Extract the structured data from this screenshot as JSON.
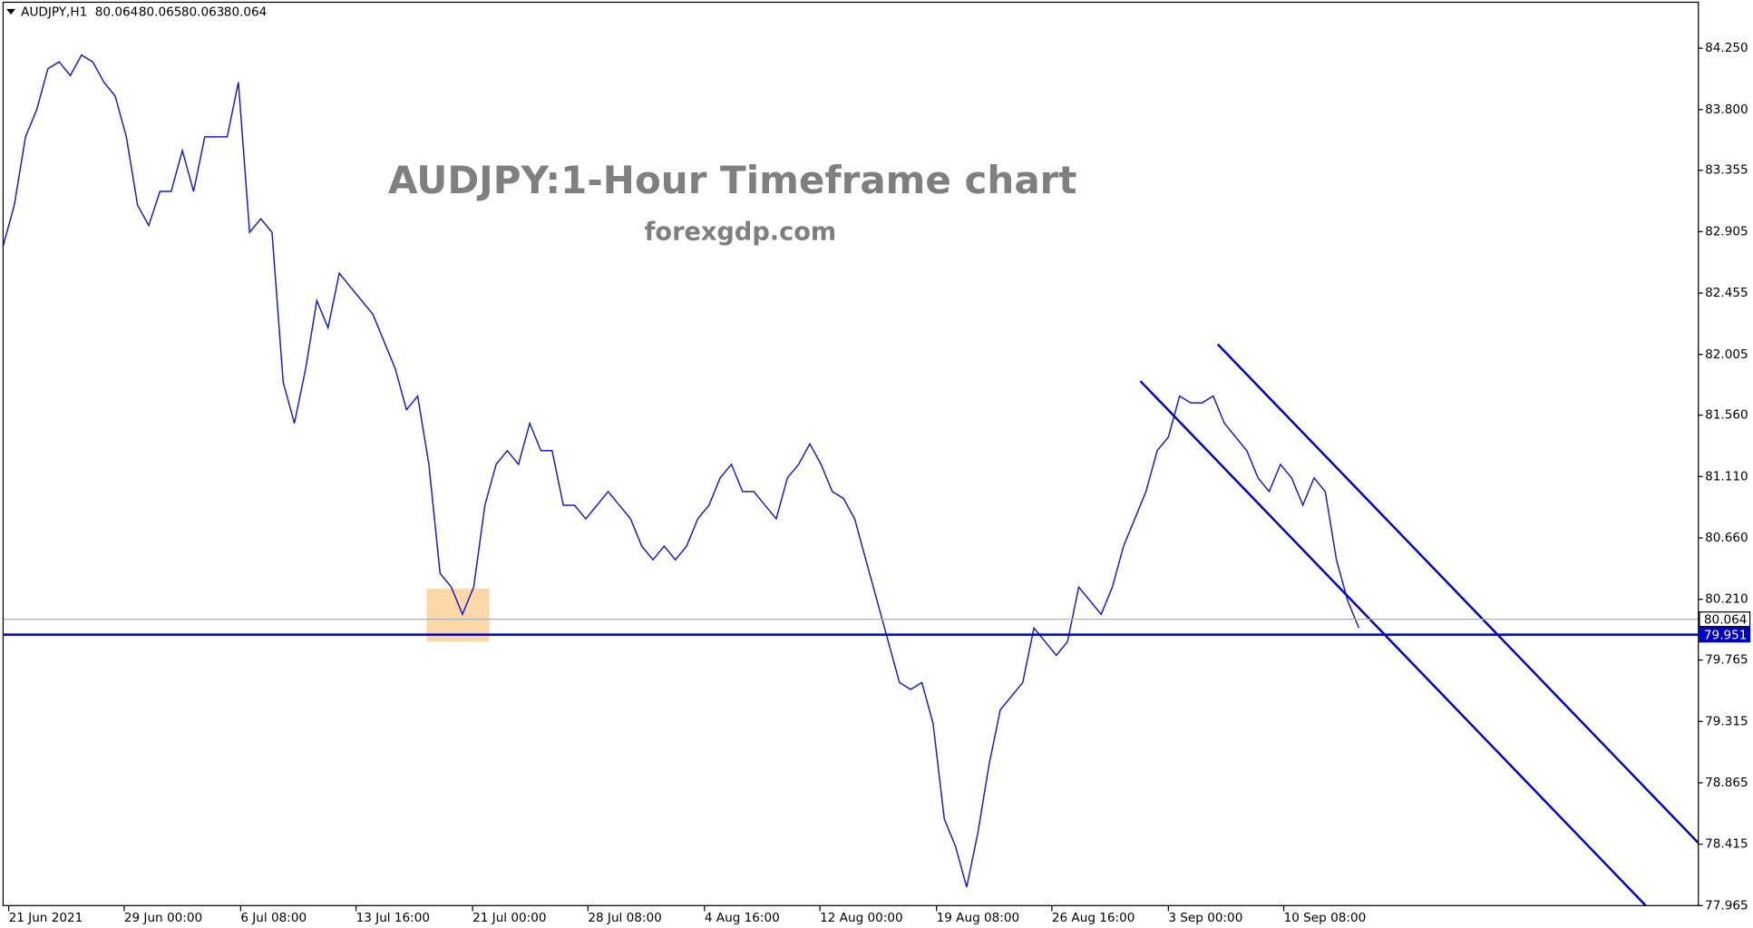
{
  "chart_data": {
    "type": "line",
    "symbol": "AUDJPY,H1",
    "ohlc": [
      80.064,
      80.065,
      80.063,
      80.064
    ],
    "title": "AUDJPY:1-Hour Timeframe chart",
    "subtitle": "forexgdp.com",
    "x": [
      0,
      10,
      20,
      30,
      40,
      50,
      60,
      70,
      80,
      90,
      100,
      110,
      120,
      130,
      140,
      150,
      160,
      170,
      180,
      190,
      200,
      210,
      220,
      230,
      240,
      250,
      260,
      270,
      280,
      290,
      300,
      310,
      320,
      330,
      340,
      350,
      360,
      370,
      380,
      390,
      400,
      410,
      420,
      430,
      440,
      450,
      460,
      470,
      480,
      490,
      500,
      510,
      520,
      530,
      540,
      550,
      560,
      570,
      580,
      590,
      600,
      610,
      620,
      630,
      640,
      650,
      660,
      670,
      680,
      690,
      700,
      710,
      720,
      730,
      740,
      750,
      760,
      770,
      780,
      790,
      800,
      810,
      820,
      830,
      840,
      850,
      860,
      870,
      880,
      890,
      900,
      910,
      920,
      930,
      940,
      950,
      960,
      970,
      980,
      990,
      1000,
      1010,
      1020,
      1030,
      1040,
      1050,
      1060,
      1070,
      1080,
      1090,
      1100,
      1110,
      1120,
      1130,
      1140,
      1150,
      1160,
      1170,
      1180,
      1190,
      1200,
      1210
    ],
    "series": [
      {
        "name": "AUDJPY",
        "color": "#1a1acc",
        "values": [
          82.8,
          83.1,
          83.6,
          83.8,
          84.1,
          84.15,
          84.05,
          84.2,
          84.15,
          84.0,
          83.9,
          83.6,
          83.1,
          82.95,
          83.2,
          83.2,
          83.5,
          83.2,
          83.6,
          83.6,
          83.6,
          84.0,
          82.9,
          83.0,
          82.9,
          81.8,
          81.5,
          81.9,
          82.4,
          82.2,
          82.6,
          82.5,
          82.4,
          82.3,
          82.1,
          81.9,
          81.6,
          81.7,
          81.2,
          80.4,
          80.3,
          80.1,
          80.3,
          80.9,
          81.2,
          81.3,
          81.2,
          81.5,
          81.3,
          81.3,
          80.9,
          80.9,
          80.8,
          80.9,
          81.0,
          80.9,
          80.8,
          80.6,
          80.5,
          80.6,
          80.5,
          80.6,
          80.8,
          80.9,
          81.1,
          81.2,
          81.0,
          81.0,
          80.9,
          80.8,
          81.1,
          81.2,
          81.35,
          81.2,
          81.0,
          80.95,
          80.8,
          80.5,
          80.2,
          79.9,
          79.6,
          79.55,
          79.6,
          79.3,
          78.6,
          78.4,
          78.1,
          78.5,
          79.0,
          79.4,
          79.5,
          79.6,
          80.0,
          79.9,
          79.8,
          79.9,
          80.3,
          80.2,
          80.1,
          80.3,
          80.6,
          80.8,
          81.0,
          81.3,
          81.4,
          81.7,
          81.65,
          81.65,
          81.7,
          81.5,
          81.4,
          81.3,
          81.1,
          81.0,
          81.2,
          81.1,
          80.9,
          81.1,
          81.0,
          80.5,
          80.2,
          80.0
        ]
      }
    ],
    "xlim": [
      0,
      1513
    ],
    "ylim": [
      77.965,
      84.587
    ],
    "xticks": [
      {
        "value": 5,
        "label": "21 Jun 2021"
      },
      {
        "value": 108,
        "label": "29 Jun 00:00"
      },
      {
        "value": 212,
        "label": "6 Jul 08:00"
      },
      {
        "value": 315,
        "label": "13 Jul 16:00"
      },
      {
        "value": 419,
        "label": "21 Jul 00:00"
      },
      {
        "value": 522,
        "label": "28 Jul 08:00"
      },
      {
        "value": 626,
        "label": "4 Aug 16:00"
      },
      {
        "value": 729,
        "label": "12 Aug 00:00"
      },
      {
        "value": 833,
        "label": "19 Aug 08:00"
      },
      {
        "value": 936,
        "label": "26 Aug 16:00"
      },
      {
        "value": 1040,
        "label": "3 Sep 00:00"
      },
      {
        "value": 1143,
        "label": "10 Sep 08:00"
      }
    ],
    "yticks": [
      {
        "value": 84.25,
        "label": "84.250"
      },
      {
        "value": 83.8,
        "label": "83.800"
      },
      83.355,
      82.905,
      82.455,
      82.005,
      {
        "value": 81.56,
        "label": "81.560"
      },
      {
        "value": 81.11,
        "label": "81.110"
      },
      {
        "value": 80.66,
        "label": "80.660"
      },
      {
        "value": 80.21,
        "label": "80.210"
      },
      79.765,
      79.315,
      78.865,
      78.415,
      77.965
    ],
    "levels": [
      {
        "value": 80.064,
        "color": "#b0b0b0"
      },
      {
        "value": 79.951,
        "color": "#0000c8"
      }
    ],
    "channel": [
      {
        "x": [
          1015,
          1466
        ],
        "y": [
          81.81,
          77.965
        ],
        "color": "#0000c8"
      },
      {
        "x": [
          1084,
          1513
        ],
        "y": [
          82.08,
          78.424
        ],
        "color": "#0000c8"
      }
    ],
    "zone": {
      "x": [
        378,
        434
      ],
      "y": [
        79.9,
        80.29
      ],
      "color": "#fbd8a8"
    }
  }
}
